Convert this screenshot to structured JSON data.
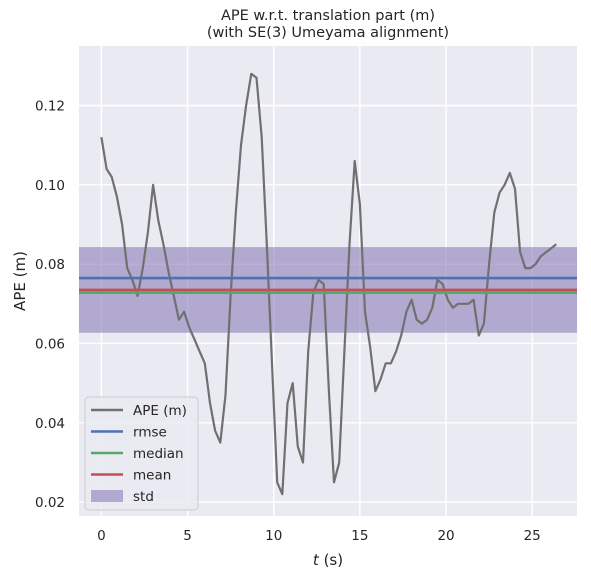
{
  "chart_data": {
    "type": "line",
    "title_lines": [
      "APE w.r.t. translation part (m)",
      "(with SE(3) Umeyama alignment)"
    ],
    "xlabel_var": "t",
    "xlabel_unit": " (s)",
    "ylabel": "APE (m)",
    "xlim": [
      -1.3,
      27.6
    ],
    "ylim": [
      0.0165,
      0.135
    ],
    "x_ticks": [
      0,
      5,
      10,
      15,
      20,
      25
    ],
    "x_tick_labels": [
      "0",
      "5",
      "10",
      "15",
      "20",
      "25"
    ],
    "y_ticks": [
      0.02,
      0.04,
      0.06,
      0.08,
      0.1,
      0.12
    ],
    "y_tick_labels": [
      "0.02",
      "0.04",
      "0.06",
      "0.08",
      "0.10",
      "0.12"
    ],
    "grid": true,
    "legend_position": "lower left",
    "series": [
      {
        "name": "APE (m)",
        "color": "#707070",
        "x": [
          0.0,
          0.3,
          0.6,
          0.9,
          1.2,
          1.5,
          1.8,
          2.1,
          2.4,
          2.7,
          3.0,
          3.3,
          3.6,
          3.9,
          4.2,
          4.5,
          4.8,
          5.1,
          5.4,
          5.7,
          6.0,
          6.3,
          6.6,
          6.9,
          7.2,
          7.5,
          7.8,
          8.1,
          8.4,
          8.7,
          9.0,
          9.3,
          9.6,
          9.9,
          10.2,
          10.5,
          10.8,
          11.1,
          11.4,
          11.7,
          12.0,
          12.3,
          12.6,
          12.9,
          13.2,
          13.5,
          13.8,
          14.1,
          14.4,
          14.7,
          15.0,
          15.3,
          15.6,
          15.9,
          16.2,
          16.5,
          16.8,
          17.1,
          17.4,
          17.7,
          18.0,
          18.3,
          18.6,
          18.9,
          19.2,
          19.5,
          19.8,
          20.1,
          20.4,
          20.7,
          21.0,
          21.3,
          21.6,
          21.9,
          22.2,
          22.5,
          22.8,
          23.1,
          23.4,
          23.7,
          24.0,
          24.3,
          24.6,
          24.9,
          25.2,
          25.5,
          25.8,
          26.1,
          26.4
        ],
        "y": [
          0.112,
          0.104,
          0.102,
          0.097,
          0.09,
          0.079,
          0.076,
          0.072,
          0.079,
          0.088,
          0.1,
          0.091,
          0.085,
          0.078,
          0.072,
          0.066,
          0.068,
          0.064,
          0.061,
          0.058,
          0.055,
          0.045,
          0.038,
          0.035,
          0.047,
          0.072,
          0.093,
          0.11,
          0.12,
          0.128,
          0.127,
          0.112,
          0.085,
          0.055,
          0.025,
          0.022,
          0.045,
          0.05,
          0.034,
          0.03,
          0.058,
          0.073,
          0.076,
          0.075,
          0.048,
          0.025,
          0.03,
          0.058,
          0.085,
          0.106,
          0.095,
          0.068,
          0.059,
          0.048,
          0.051,
          0.055,
          0.055,
          0.058,
          0.062,
          0.068,
          0.071,
          0.066,
          0.065,
          0.066,
          0.069,
          0.076,
          0.075,
          0.071,
          0.069,
          0.07,
          0.07,
          0.07,
          0.071,
          0.062,
          0.065,
          0.08,
          0.093,
          0.098,
          0.1,
          0.103,
          0.099,
          0.083,
          0.079,
          0.079,
          0.08,
          0.082,
          0.083,
          0.084,
          0.085
        ]
      },
      {
        "name": "rmse",
        "color": "#4c72b0",
        "value": 0.0765
      },
      {
        "name": "median",
        "color": "#55a868",
        "value": 0.0728
      },
      {
        "name": "mean",
        "color": "#c44e52",
        "value": 0.0735
      },
      {
        "name": "std",
        "color": "#8172b2",
        "range": [
          0.0627,
          0.0843
        ]
      }
    ]
  }
}
